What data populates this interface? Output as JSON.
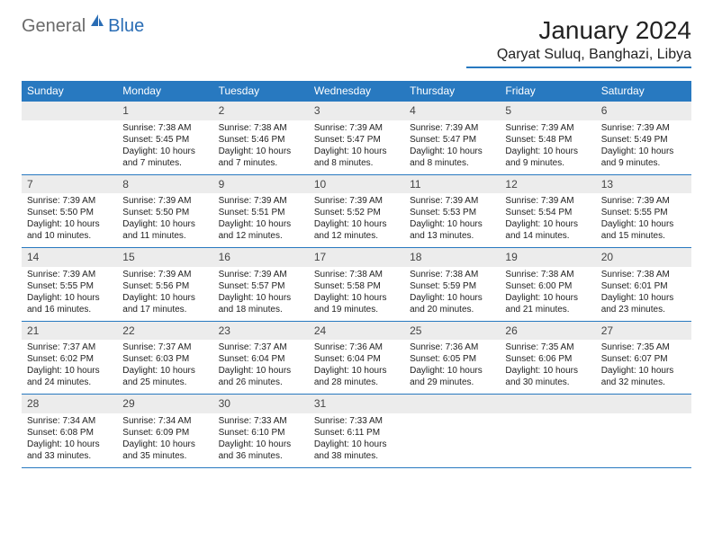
{
  "logo": {
    "text1": "General",
    "text2": "Blue",
    "icon_color": "#2a6db5"
  },
  "title": "January 2024",
  "location": "Qaryat Suluq, Banghazi, Libya",
  "colors": {
    "header_bg": "#2879c0",
    "header_text": "#ffffff",
    "daynum_bg": "#ececec",
    "border": "#2879c0",
    "text": "#222222"
  },
  "weekdays": [
    "Sunday",
    "Monday",
    "Tuesday",
    "Wednesday",
    "Thursday",
    "Friday",
    "Saturday"
  ],
  "start_offset": 1,
  "days": [
    {
      "n": 1,
      "sr": "7:38 AM",
      "ss": "5:45 PM",
      "dl": "10 hours and 7 minutes."
    },
    {
      "n": 2,
      "sr": "7:38 AM",
      "ss": "5:46 PM",
      "dl": "10 hours and 7 minutes."
    },
    {
      "n": 3,
      "sr": "7:39 AM",
      "ss": "5:47 PM",
      "dl": "10 hours and 8 minutes."
    },
    {
      "n": 4,
      "sr": "7:39 AM",
      "ss": "5:47 PM",
      "dl": "10 hours and 8 minutes."
    },
    {
      "n": 5,
      "sr": "7:39 AM",
      "ss": "5:48 PM",
      "dl": "10 hours and 9 minutes."
    },
    {
      "n": 6,
      "sr": "7:39 AM",
      "ss": "5:49 PM",
      "dl": "10 hours and 9 minutes."
    },
    {
      "n": 7,
      "sr": "7:39 AM",
      "ss": "5:50 PM",
      "dl": "10 hours and 10 minutes."
    },
    {
      "n": 8,
      "sr": "7:39 AM",
      "ss": "5:50 PM",
      "dl": "10 hours and 11 minutes."
    },
    {
      "n": 9,
      "sr": "7:39 AM",
      "ss": "5:51 PM",
      "dl": "10 hours and 12 minutes."
    },
    {
      "n": 10,
      "sr": "7:39 AM",
      "ss": "5:52 PM",
      "dl": "10 hours and 12 minutes."
    },
    {
      "n": 11,
      "sr": "7:39 AM",
      "ss": "5:53 PM",
      "dl": "10 hours and 13 minutes."
    },
    {
      "n": 12,
      "sr": "7:39 AM",
      "ss": "5:54 PM",
      "dl": "10 hours and 14 minutes."
    },
    {
      "n": 13,
      "sr": "7:39 AM",
      "ss": "5:55 PM",
      "dl": "10 hours and 15 minutes."
    },
    {
      "n": 14,
      "sr": "7:39 AM",
      "ss": "5:55 PM",
      "dl": "10 hours and 16 minutes."
    },
    {
      "n": 15,
      "sr": "7:39 AM",
      "ss": "5:56 PM",
      "dl": "10 hours and 17 minutes."
    },
    {
      "n": 16,
      "sr": "7:39 AM",
      "ss": "5:57 PM",
      "dl": "10 hours and 18 minutes."
    },
    {
      "n": 17,
      "sr": "7:38 AM",
      "ss": "5:58 PM",
      "dl": "10 hours and 19 minutes."
    },
    {
      "n": 18,
      "sr": "7:38 AM",
      "ss": "5:59 PM",
      "dl": "10 hours and 20 minutes."
    },
    {
      "n": 19,
      "sr": "7:38 AM",
      "ss": "6:00 PM",
      "dl": "10 hours and 21 minutes."
    },
    {
      "n": 20,
      "sr": "7:38 AM",
      "ss": "6:01 PM",
      "dl": "10 hours and 23 minutes."
    },
    {
      "n": 21,
      "sr": "7:37 AM",
      "ss": "6:02 PM",
      "dl": "10 hours and 24 minutes."
    },
    {
      "n": 22,
      "sr": "7:37 AM",
      "ss": "6:03 PM",
      "dl": "10 hours and 25 minutes."
    },
    {
      "n": 23,
      "sr": "7:37 AM",
      "ss": "6:04 PM",
      "dl": "10 hours and 26 minutes."
    },
    {
      "n": 24,
      "sr": "7:36 AM",
      "ss": "6:04 PM",
      "dl": "10 hours and 28 minutes."
    },
    {
      "n": 25,
      "sr": "7:36 AM",
      "ss": "6:05 PM",
      "dl": "10 hours and 29 minutes."
    },
    {
      "n": 26,
      "sr": "7:35 AM",
      "ss": "6:06 PM",
      "dl": "10 hours and 30 minutes."
    },
    {
      "n": 27,
      "sr": "7:35 AM",
      "ss": "6:07 PM",
      "dl": "10 hours and 32 minutes."
    },
    {
      "n": 28,
      "sr": "7:34 AM",
      "ss": "6:08 PM",
      "dl": "10 hours and 33 minutes."
    },
    {
      "n": 29,
      "sr": "7:34 AM",
      "ss": "6:09 PM",
      "dl": "10 hours and 35 minutes."
    },
    {
      "n": 30,
      "sr": "7:33 AM",
      "ss": "6:10 PM",
      "dl": "10 hours and 36 minutes."
    },
    {
      "n": 31,
      "sr": "7:33 AM",
      "ss": "6:11 PM",
      "dl": "10 hours and 38 minutes."
    }
  ],
  "labels": {
    "sunrise": "Sunrise:",
    "sunset": "Sunset:",
    "daylight": "Daylight:"
  }
}
